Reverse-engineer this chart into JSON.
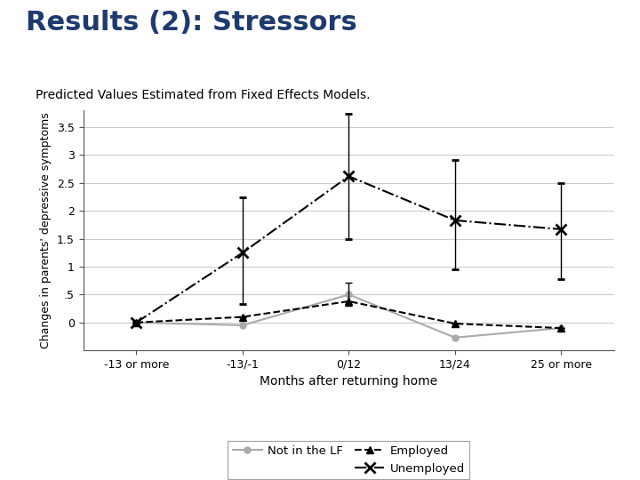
{
  "title": "Results (2): Stressors",
  "subtitle": "Predicted Values Estimated from Fixed Effects Models.",
  "xlabel": "Months after returning home",
  "ylabel": "Changes in parents' depressive symptoms",
  "x_labels": [
    "-13 or more",
    "-13/-1",
    "0/12",
    "13/24",
    "25 or more"
  ],
  "x_positions": [
    0,
    1,
    2,
    3,
    4
  ],
  "ylim": [
    -0.5,
    3.8
  ],
  "yticks": [
    0.0,
    0.5,
    1.0,
    1.5,
    2.0,
    2.5,
    3.0,
    3.5
  ],
  "ytick_labels": [
    "0",
    ".5",
    "1",
    "1.5",
    "2",
    "2.5",
    "3",
    "3.5"
  ],
  "not_in_lf": {
    "y": [
      0.0,
      -0.05,
      0.5,
      -0.27,
      -0.1
    ],
    "color": "#aaaaaa",
    "marker": "o",
    "linestyle": "-",
    "linewidth": 1.5,
    "markersize": 5
  },
  "employed": {
    "y": [
      0.0,
      0.1,
      0.38,
      -0.02,
      -0.1
    ],
    "yerr_low": [
      0.0,
      0.0,
      0.08,
      0.0,
      0.0
    ],
    "yerr_high": [
      0.0,
      0.0,
      0.33,
      0.0,
      0.0
    ],
    "color": "#000000",
    "marker": "^",
    "linestyle": "--",
    "linewidth": 1.5,
    "markersize": 6
  },
  "unemployed": {
    "y": [
      0.0,
      1.25,
      2.62,
      1.83,
      1.67
    ],
    "yerr_low": [
      0.0,
      0.92,
      1.12,
      0.88,
      0.9
    ],
    "yerr_high": [
      0.0,
      1.0,
      1.12,
      1.08,
      0.82
    ],
    "color": "#000000",
    "marker": "x",
    "linestyle": "-.",
    "linewidth": 1.5,
    "markersize": 8
  },
  "background_color": "#ffffff",
  "grid_color": "#cccccc",
  "title_color": "#1f3a6e",
  "subtitle_color": "#000000",
  "title_fontsize": 22,
  "subtitle_fontsize": 10
}
